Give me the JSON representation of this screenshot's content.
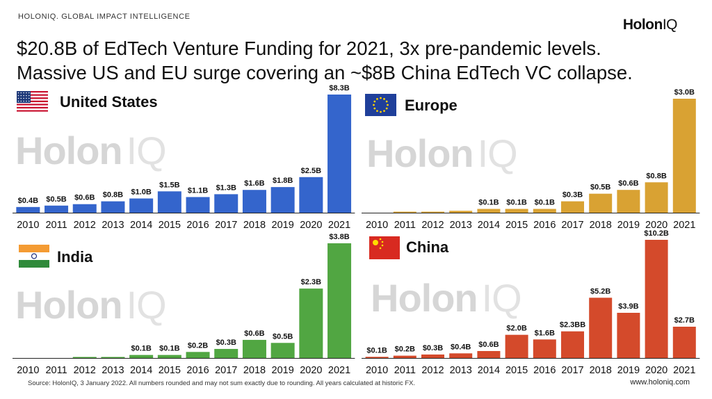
{
  "header": {
    "kicker": "HOLONIQ. GLOBAL IMPACT INTELLIGENCE",
    "brand_main": "Holon",
    "brand_iq": "IQ",
    "title_line1": "$20.8B of EdTech Venture Funding for 2021, 3x pre-pandemic levels.",
    "title_line2": "Massive US and EU surge covering an ~$8B China EdTech VC collapse."
  },
  "watermark": {
    "main": "Holon",
    "iq": "IQ"
  },
  "footer": {
    "source": "Source: HolonIQ, 3 January 2022. All numbers rounded and may not sum exactly due to rounding. All years calculated at historic FX.",
    "website": "www.holoniq.com"
  },
  "chart_data": [
    {
      "type": "bar",
      "title": "United States",
      "flag": "us-flag",
      "color": "#3465cc",
      "categories": [
        "2010",
        "2011",
        "2012",
        "2013",
        "2014",
        "2015",
        "2016",
        "2017",
        "2018",
        "2019",
        "2020",
        "2021"
      ],
      "values": [
        0.4,
        0.5,
        0.6,
        0.8,
        1.0,
        1.5,
        1.1,
        1.3,
        1.6,
        1.8,
        2.5,
        8.3
      ],
      "labels": [
        "$0.4B",
        "$0.5B",
        "$0.6B",
        "$0.8B",
        "$1.0B",
        "$1.5B",
        "$1.1B",
        "$1.3B",
        "$1.6B",
        "$1.8B",
        "$2.5B",
        "$8.3B"
      ]
    },
    {
      "type": "bar",
      "title": "Europe",
      "flag": "eu-flag",
      "color": "#d9a233",
      "categories": [
        "2010",
        "2011",
        "2012",
        "2013",
        "2014",
        "2015",
        "2016",
        "2017",
        "2018",
        "2019",
        "2020",
        "2021"
      ],
      "values": [
        0.0,
        0.01,
        0.02,
        0.05,
        0.1,
        0.1,
        0.1,
        0.3,
        0.5,
        0.6,
        0.8,
        3.0
      ],
      "labels": [
        "",
        "",
        "",
        "",
        "$0.1B",
        "$0.1B",
        "$0.1B",
        "$0.3B",
        "$0.5B",
        "$0.6B",
        "$0.8B",
        "$3.0B"
      ]
    },
    {
      "type": "bar",
      "title": "India",
      "flag": "india-flag",
      "color": "#51a642",
      "categories": [
        "2010",
        "2011",
        "2012",
        "2013",
        "2014",
        "2015",
        "2016",
        "2017",
        "2018",
        "2019",
        "2020",
        "2021"
      ],
      "values": [
        0.0,
        0.0,
        0.01,
        0.02,
        0.1,
        0.1,
        0.2,
        0.3,
        0.6,
        0.5,
        2.3,
        3.8
      ],
      "labels": [
        "",
        "",
        "",
        "",
        "$0.1B",
        "$0.1B",
        "$0.2B",
        "$0.3B",
        "$0.6B",
        "$0.5B",
        "$2.3B",
        "$3.8B"
      ]
    },
    {
      "type": "bar",
      "title": "China",
      "flag": "china-flag",
      "color": "#d44a2b",
      "categories": [
        "2010",
        "2011",
        "2012",
        "2013",
        "2014",
        "2015",
        "2016",
        "2017",
        "2018",
        "2019",
        "2020",
        "2021"
      ],
      "values": [
        0.1,
        0.2,
        0.3,
        0.4,
        0.6,
        2.0,
        1.6,
        2.3,
        5.2,
        3.9,
        10.2,
        2.7
      ],
      "labels": [
        "$0.1B",
        "$0.2B",
        "$0.3B",
        "$0.4B",
        "$0.6B",
        "$2.0B",
        "$1.6B",
        "$2.3BB",
        "$5.2B",
        "$3.9B",
        "$10.2B",
        "$2.7B"
      ]
    }
  ]
}
